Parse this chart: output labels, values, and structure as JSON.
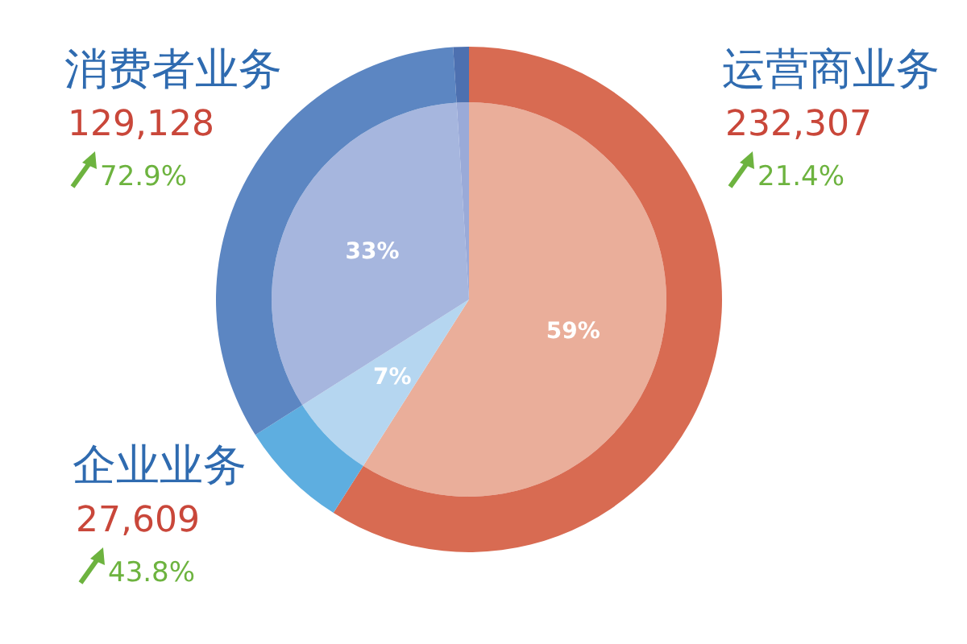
{
  "chart_data": {
    "type": "pie",
    "categories": [
      "运营商业务",
      "企业业务",
      "消费者业务",
      null
    ],
    "series": [
      {
        "values": [
          59,
          7,
          33,
          1
        ],
        "colors": [
          "#eaae9a",
          "#b5d6f0",
          "#a6b6de",
          "#9aaad8"
        ],
        "value_labels": [
          "59%",
          "7%",
          "33%",
          null
        ]
      },
      {
        "values": [
          59,
          7,
          33,
          1
        ],
        "colors": [
          "#d86b52",
          "#5eaee0",
          "#5c86c2",
          "#4d70b0"
        ]
      }
    ],
    "annotations": [
      "232,307",
      "21.4%",
      "27,609",
      "43.8%",
      "129,128",
      "72.9%"
    ]
  }
}
